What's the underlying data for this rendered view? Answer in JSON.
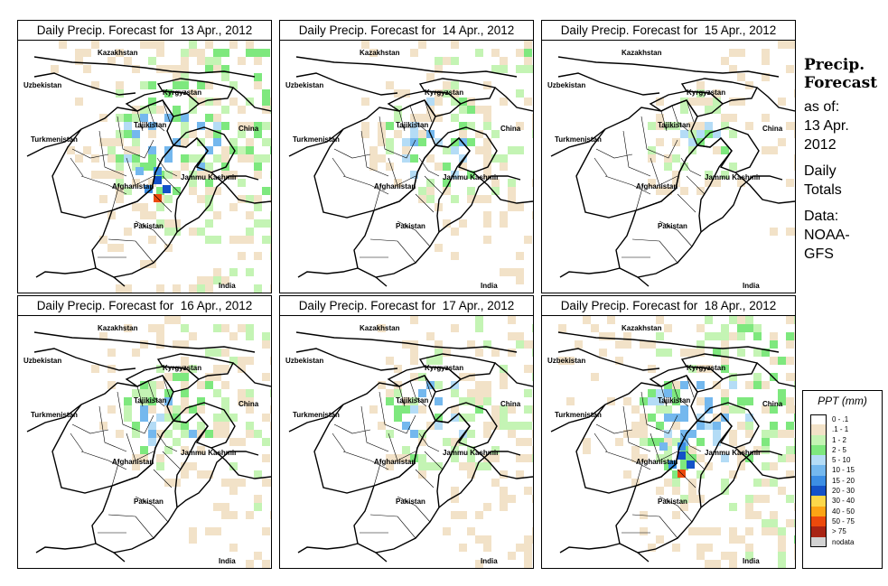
{
  "panels": [
    {
      "title": "Daily Precip. Forecast for  13 Apr., 2012",
      "intensity": "high"
    },
    {
      "title": "Daily Precip. Forecast for  14 Apr., 2012",
      "intensity": "medium"
    },
    {
      "title": "Daily Precip. Forecast for  15 Apr., 2012",
      "intensity": "low"
    },
    {
      "title": "Daily Precip. Forecast for  16 Apr., 2012",
      "intensity": "medium"
    },
    {
      "title": "Daily Precip. Forecast for  17 Apr., 2012",
      "intensity": "medium"
    },
    {
      "title": "Daily Precip. Forecast for  18 Apr., 2012",
      "intensity": "high"
    }
  ],
  "map_labels": {
    "kazakhstan": "Kazakhstan",
    "uzbekistan": "Uzbekistan",
    "kyrgyzstan": "Kyrgyzstan",
    "tajikistan": "Tajikistan",
    "china": "China",
    "turkmenistan": "Turkmenistan",
    "afghanistan": "Afghanistan",
    "jammu_kashmir": "Jammu Kashmir",
    "pakistan": "Pakistan",
    "india": "India"
  },
  "side_panel": {
    "heading_line1": "Precip.",
    "heading_line2": "Forecast",
    "asof_line1": "as of:",
    "asof_line2": "13 Apr.",
    "asof_line3": "2012",
    "daily_line1": "Daily",
    "daily_line2": "Totals",
    "data_line1": "Data:",
    "data_line2": "NOAA-",
    "data_line3": "GFS"
  },
  "legend": {
    "title": "PPT (mm)",
    "items": [
      {
        "label": "0 - .1",
        "color": "#ffffff"
      },
      {
        "label": ".1 - 1",
        "color": "#f2e2c8"
      },
      {
        "label": "1 - 2",
        "color": "#c4f4b4"
      },
      {
        "label": "2 - 5",
        "color": "#7ee87e"
      },
      {
        "label": "5 - 10",
        "color": "#b4dcf6"
      },
      {
        "label": "10 - 15",
        "color": "#74b8ee"
      },
      {
        "label": "15 - 20",
        "color": "#3c8ee4"
      },
      {
        "label": "20 - 30",
        "color": "#1452c8"
      },
      {
        "label": "30 - 40",
        "color": "#fcd84a"
      },
      {
        "label": "40 - 50",
        "color": "#fca414"
      },
      {
        "label": "50 - 75",
        "color": "#ec4a0c"
      },
      {
        "label": "> 75",
        "color": "#a82414"
      },
      {
        "label": "nodata",
        "color": "#d2d2d2"
      }
    ]
  }
}
